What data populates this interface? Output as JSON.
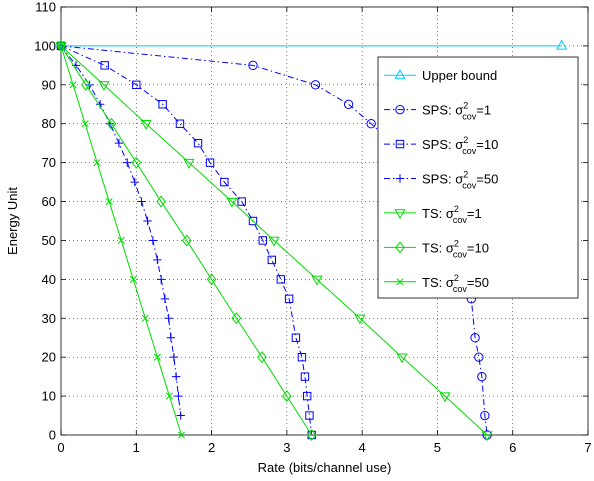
{
  "chart_data": {
    "type": "line",
    "xlabel": "Rate (bits/channel use)",
    "ylabel": "Energy Unit",
    "xlim": [
      0,
      7
    ],
    "ylim": [
      0,
      110
    ],
    "xticks": [
      "0",
      "1",
      "2",
      "3",
      "4",
      "5",
      "6",
      "7"
    ],
    "yticks": [
      "0",
      "10",
      "20",
      "30",
      "40",
      "50",
      "60",
      "70",
      "80",
      "90",
      "100",
      "110"
    ],
    "grid": true,
    "legend_position": "top-right",
    "series": [
      {
        "name": "Upper bound",
        "color": "#00ccff",
        "line": "solid",
        "marker": "triangle-up",
        "x": [
          0,
          6.65
        ],
        "y": [
          100,
          100
        ]
      },
      {
        "name": "SPS: σ²cov=1",
        "name_main": "SPS: σ",
        "name_sup": "2",
        "name_sub": "cov",
        "name_tail": "=1",
        "color": "#0000ff",
        "line": "dashdot",
        "marker": "circle",
        "x": [
          0,
          2.55,
          3.38,
          3.82,
          4.12,
          4.4,
          4.62,
          4.82,
          5.0,
          5.13,
          5.27,
          5.37,
          5.45,
          5.5,
          5.55,
          5.59,
          5.63,
          5.66
        ],
        "y": [
          100,
          95,
          90,
          85,
          80,
          75,
          70,
          65,
          60,
          55,
          50,
          45,
          35,
          25,
          20,
          15,
          5,
          0
        ]
      },
      {
        "name": "SPS: σ²cov=10",
        "name_main": "SPS: σ",
        "name_sup": "2",
        "name_sub": "cov",
        "name_tail": "=10",
        "color": "#0000ff",
        "line": "dashdot",
        "marker": "square",
        "x": [
          0,
          0.58,
          1.0,
          1.35,
          1.58,
          1.82,
          1.98,
          2.17,
          2.4,
          2.55,
          2.68,
          2.8,
          2.92,
          3.03,
          3.12,
          3.2,
          3.24,
          3.27,
          3.3,
          3.33
        ],
        "y": [
          100,
          95,
          90,
          85,
          80,
          75,
          70,
          65,
          60,
          55,
          50,
          45,
          40,
          35,
          25,
          20,
          15,
          10,
          5,
          0
        ]
      },
      {
        "name": "SPS: σ²cov=50",
        "name_main": "SPS: σ",
        "name_sup": "2",
        "name_sub": "cov",
        "name_tail": "=50",
        "color": "#0000ff",
        "line": "dashdot",
        "marker": "plus",
        "x": [
          0,
          0.2,
          0.38,
          0.52,
          0.65,
          0.77,
          0.88,
          0.98,
          1.07,
          1.15,
          1.22,
          1.28,
          1.33,
          1.38,
          1.43,
          1.46,
          1.5,
          1.53,
          1.56,
          1.59
        ],
        "y": [
          100,
          95,
          90,
          85,
          80,
          75,
          70,
          65,
          60,
          55,
          50,
          45,
          40,
          35,
          30,
          25,
          20,
          15,
          10,
          5
        ]
      },
      {
        "name": "TS: σ²cov=1",
        "name_main": "TS: σ",
        "name_sup": "2",
        "name_sub": "cov",
        "name_tail": "=1",
        "color": "#00dd00",
        "line": "solid",
        "marker": "triangle-down",
        "x": [
          0,
          0.57,
          1.13,
          1.7,
          2.27,
          2.83,
          3.4,
          3.97,
          4.53,
          5.1,
          5.66
        ],
        "y": [
          100,
          90,
          80,
          70,
          60,
          50,
          40,
          30,
          20,
          10,
          0
        ]
      },
      {
        "name": "TS: σ²cov=10",
        "name_main": "TS: σ",
        "name_sup": "2",
        "name_sub": "cov",
        "name_tail": "=10",
        "color": "#00dd00",
        "line": "solid",
        "marker": "diamond",
        "x": [
          0,
          0.33,
          0.67,
          1.0,
          1.33,
          1.67,
          2.0,
          2.33,
          2.67,
          3.0,
          3.33
        ],
        "y": [
          100,
          90,
          80,
          70,
          60,
          50,
          40,
          30,
          20,
          10,
          0
        ]
      },
      {
        "name": "TS: σ²cov=50",
        "name_main": "TS: σ",
        "name_sup": "2",
        "name_sub": "cov",
        "name_tail": "=50",
        "color": "#00dd00",
        "line": "solid",
        "marker": "x",
        "x": [
          0,
          0.16,
          0.32,
          0.48,
          0.64,
          0.8,
          0.96,
          1.12,
          1.28,
          1.44,
          1.6
        ],
        "y": [
          100,
          90,
          80,
          70,
          60,
          50,
          40,
          30,
          20,
          10,
          0
        ]
      }
    ]
  }
}
